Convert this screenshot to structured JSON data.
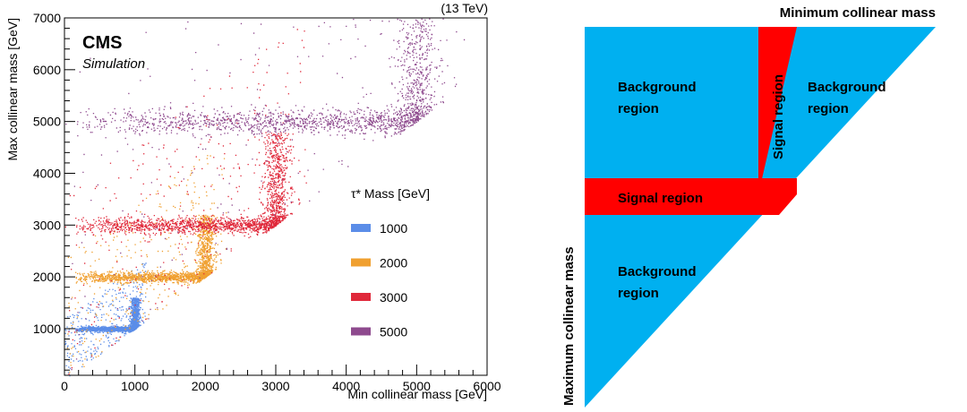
{
  "chart_data": [
    {
      "type": "scatter",
      "energy": "(13 TeV)",
      "experiment": "CMS",
      "subtitle": "Simulation",
      "xlabel": "Min collinear mass [GeV]",
      "ylabel": "Max collinear mass [GeV]",
      "xlim": [
        0,
        6000
      ],
      "ylim": [
        100,
        7000
      ],
      "xticks": [
        "0",
        "1000",
        "2000",
        "3000",
        "4000",
        "5000",
        "6000"
      ],
      "yticks": [
        "1000",
        "2000",
        "3000",
        "4000",
        "5000",
        "6000",
        "7000"
      ],
      "grid": false,
      "legend": {
        "title": "τ* Mass [GeV]",
        "placement": "center-right",
        "entries": [
          "1000",
          "2000",
          "3000",
          "5000"
        ]
      },
      "series": [
        {
          "name": "1000",
          "mass": 1000,
          "color": "#5b8de8"
        },
        {
          "name": "2000",
          "mass": 2000,
          "color": "#f0a030"
        },
        {
          "name": "3000",
          "mass": 3000,
          "color": "#e0283a"
        },
        {
          "name": "5000",
          "mass": 5000,
          "color": "#8e4a8e"
        }
      ],
      "constraint": "max >= min"
    },
    {
      "type": "diagram",
      "top_axis_label": "Minimum collinear mass",
      "left_axis_label": "Maximum collinear mass",
      "regions": [
        {
          "label_lines": [
            "Background",
            "region"
          ],
          "color": "#00b0f0"
        },
        {
          "label_lines": [
            "Background",
            "region"
          ],
          "color": "#00b0f0"
        },
        {
          "label_lines": [
            "Background",
            "region"
          ],
          "color": "#00b0f0"
        },
        {
          "label_lines": [
            "Signal region"
          ],
          "color": "#ff0000"
        },
        {
          "label_lines": [
            "Signal region"
          ],
          "color": "#ff0000"
        }
      ]
    }
  ]
}
